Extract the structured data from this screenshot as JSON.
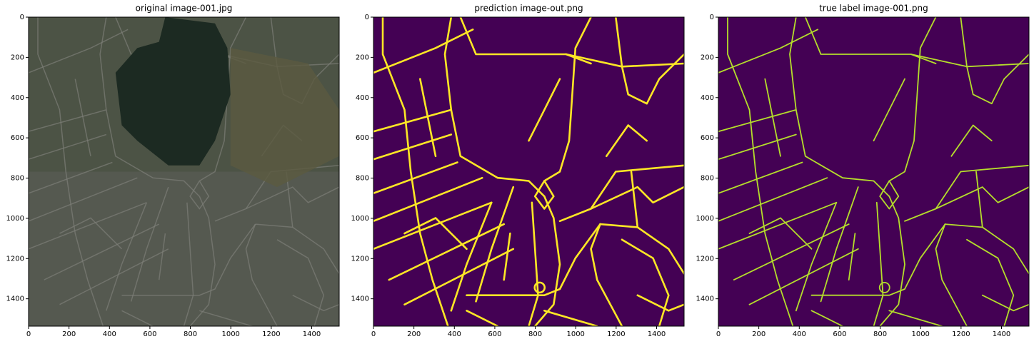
{
  "chart_data": [
    {
      "type": "image",
      "title": "original image-001.jpg",
      "xlim": [
        0,
        1536
      ],
      "ylim": [
        1536,
        0
      ],
      "xticks": [
        0,
        200,
        400,
        600,
        800,
        1000,
        1200,
        1400
      ],
      "yticks": [
        0,
        200,
        400,
        600,
        800,
        1000,
        1200,
        1400
      ]
    },
    {
      "type": "image",
      "title": "prediction image-out.png",
      "xlim": [
        0,
        1536
      ],
      "ylim": [
        1536,
        0
      ],
      "xticks": [
        0,
        200,
        400,
        600,
        800,
        1000,
        1200,
        1400
      ],
      "yticks": [
        0,
        200,
        400,
        600,
        800,
        1000,
        1200,
        1400
      ]
    },
    {
      "type": "image",
      "title": "true label image-001.png",
      "xlim": [
        0,
        1536
      ],
      "ylim": [
        1536,
        0
      ],
      "xticks": [
        0,
        200,
        400,
        600,
        800,
        1000,
        1200,
        1400
      ],
      "yticks": [
        0,
        200,
        400,
        600,
        800,
        1000,
        1200,
        1400
      ]
    }
  ]
}
